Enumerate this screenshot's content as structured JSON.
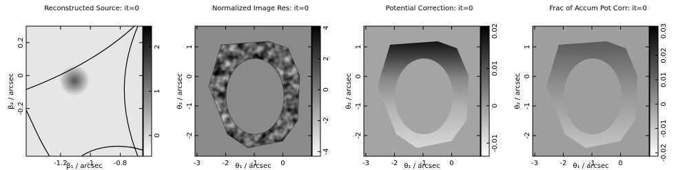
{
  "chart_data": [
    {
      "type": "image",
      "title": "Reconstructed Source: it=0",
      "xlabel": "β₁ / arcsec",
      "ylabel": "β₂ / arcsec",
      "xlim": [
        -1.43,
        -0.65
      ],
      "xticks": [
        -1.2,
        -1,
        -0.8
      ],
      "ylim": [
        -0.49,
        0.3
      ],
      "yticks": [
        -0.2,
        0,
        0.2
      ],
      "clim": [
        -0.47,
        2.47
      ],
      "cticks": [
        0,
        1,
        2
      ]
    },
    {
      "type": "image",
      "title": "Normalized Image Res: it=0",
      "xlabel": "θ₁ / arcsec",
      "ylabel": "θ₂ / arcsec",
      "xlim": [
        -3.07,
        1.0
      ],
      "xticks": [
        -3,
        -2,
        -1,
        0
      ],
      "ylim": [
        -2.7,
        1.7
      ],
      "yticks": [
        -2,
        -1,
        0,
        1
      ],
      "clim": [
        -4.3,
        4.1
      ],
      "cticks": [
        -4,
        -2,
        0,
        2,
        4
      ]
    },
    {
      "type": "image",
      "title": "Potential Correction: it=0",
      "xlabel": "θ₁ / arcsec",
      "ylabel": "θ₂ / arcsec",
      "xlim": [
        -3.07,
        1.0
      ],
      "xticks": [
        -3,
        -2,
        -1,
        0
      ],
      "ylim": [
        -2.7,
        1.7
      ],
      "yticks": [
        -2,
        -1,
        0,
        1
      ],
      "clim": [
        -0.0135,
        0.0213
      ],
      "cticks": [
        -0.01,
        0,
        0.01,
        0.02
      ]
    },
    {
      "type": "image",
      "title": "Frac of Accum Pot Corr: it=0",
      "xlabel": "θ₁ / arcsec",
      "ylabel": "θ₂ / arcsec",
      "xlim": [
        -3.07,
        1.0
      ],
      "xticks": [
        -3,
        -2,
        -1,
        0
      ],
      "ylim": [
        -2.7,
        1.7
      ],
      "yticks": [
        -2,
        -1,
        0,
        1
      ],
      "clim": [
        -0.0214,
        0.032
      ],
      "cticks": [
        -0.02,
        -0.01,
        0,
        0.01,
        0.02,
        0.03
      ]
    }
  ]
}
